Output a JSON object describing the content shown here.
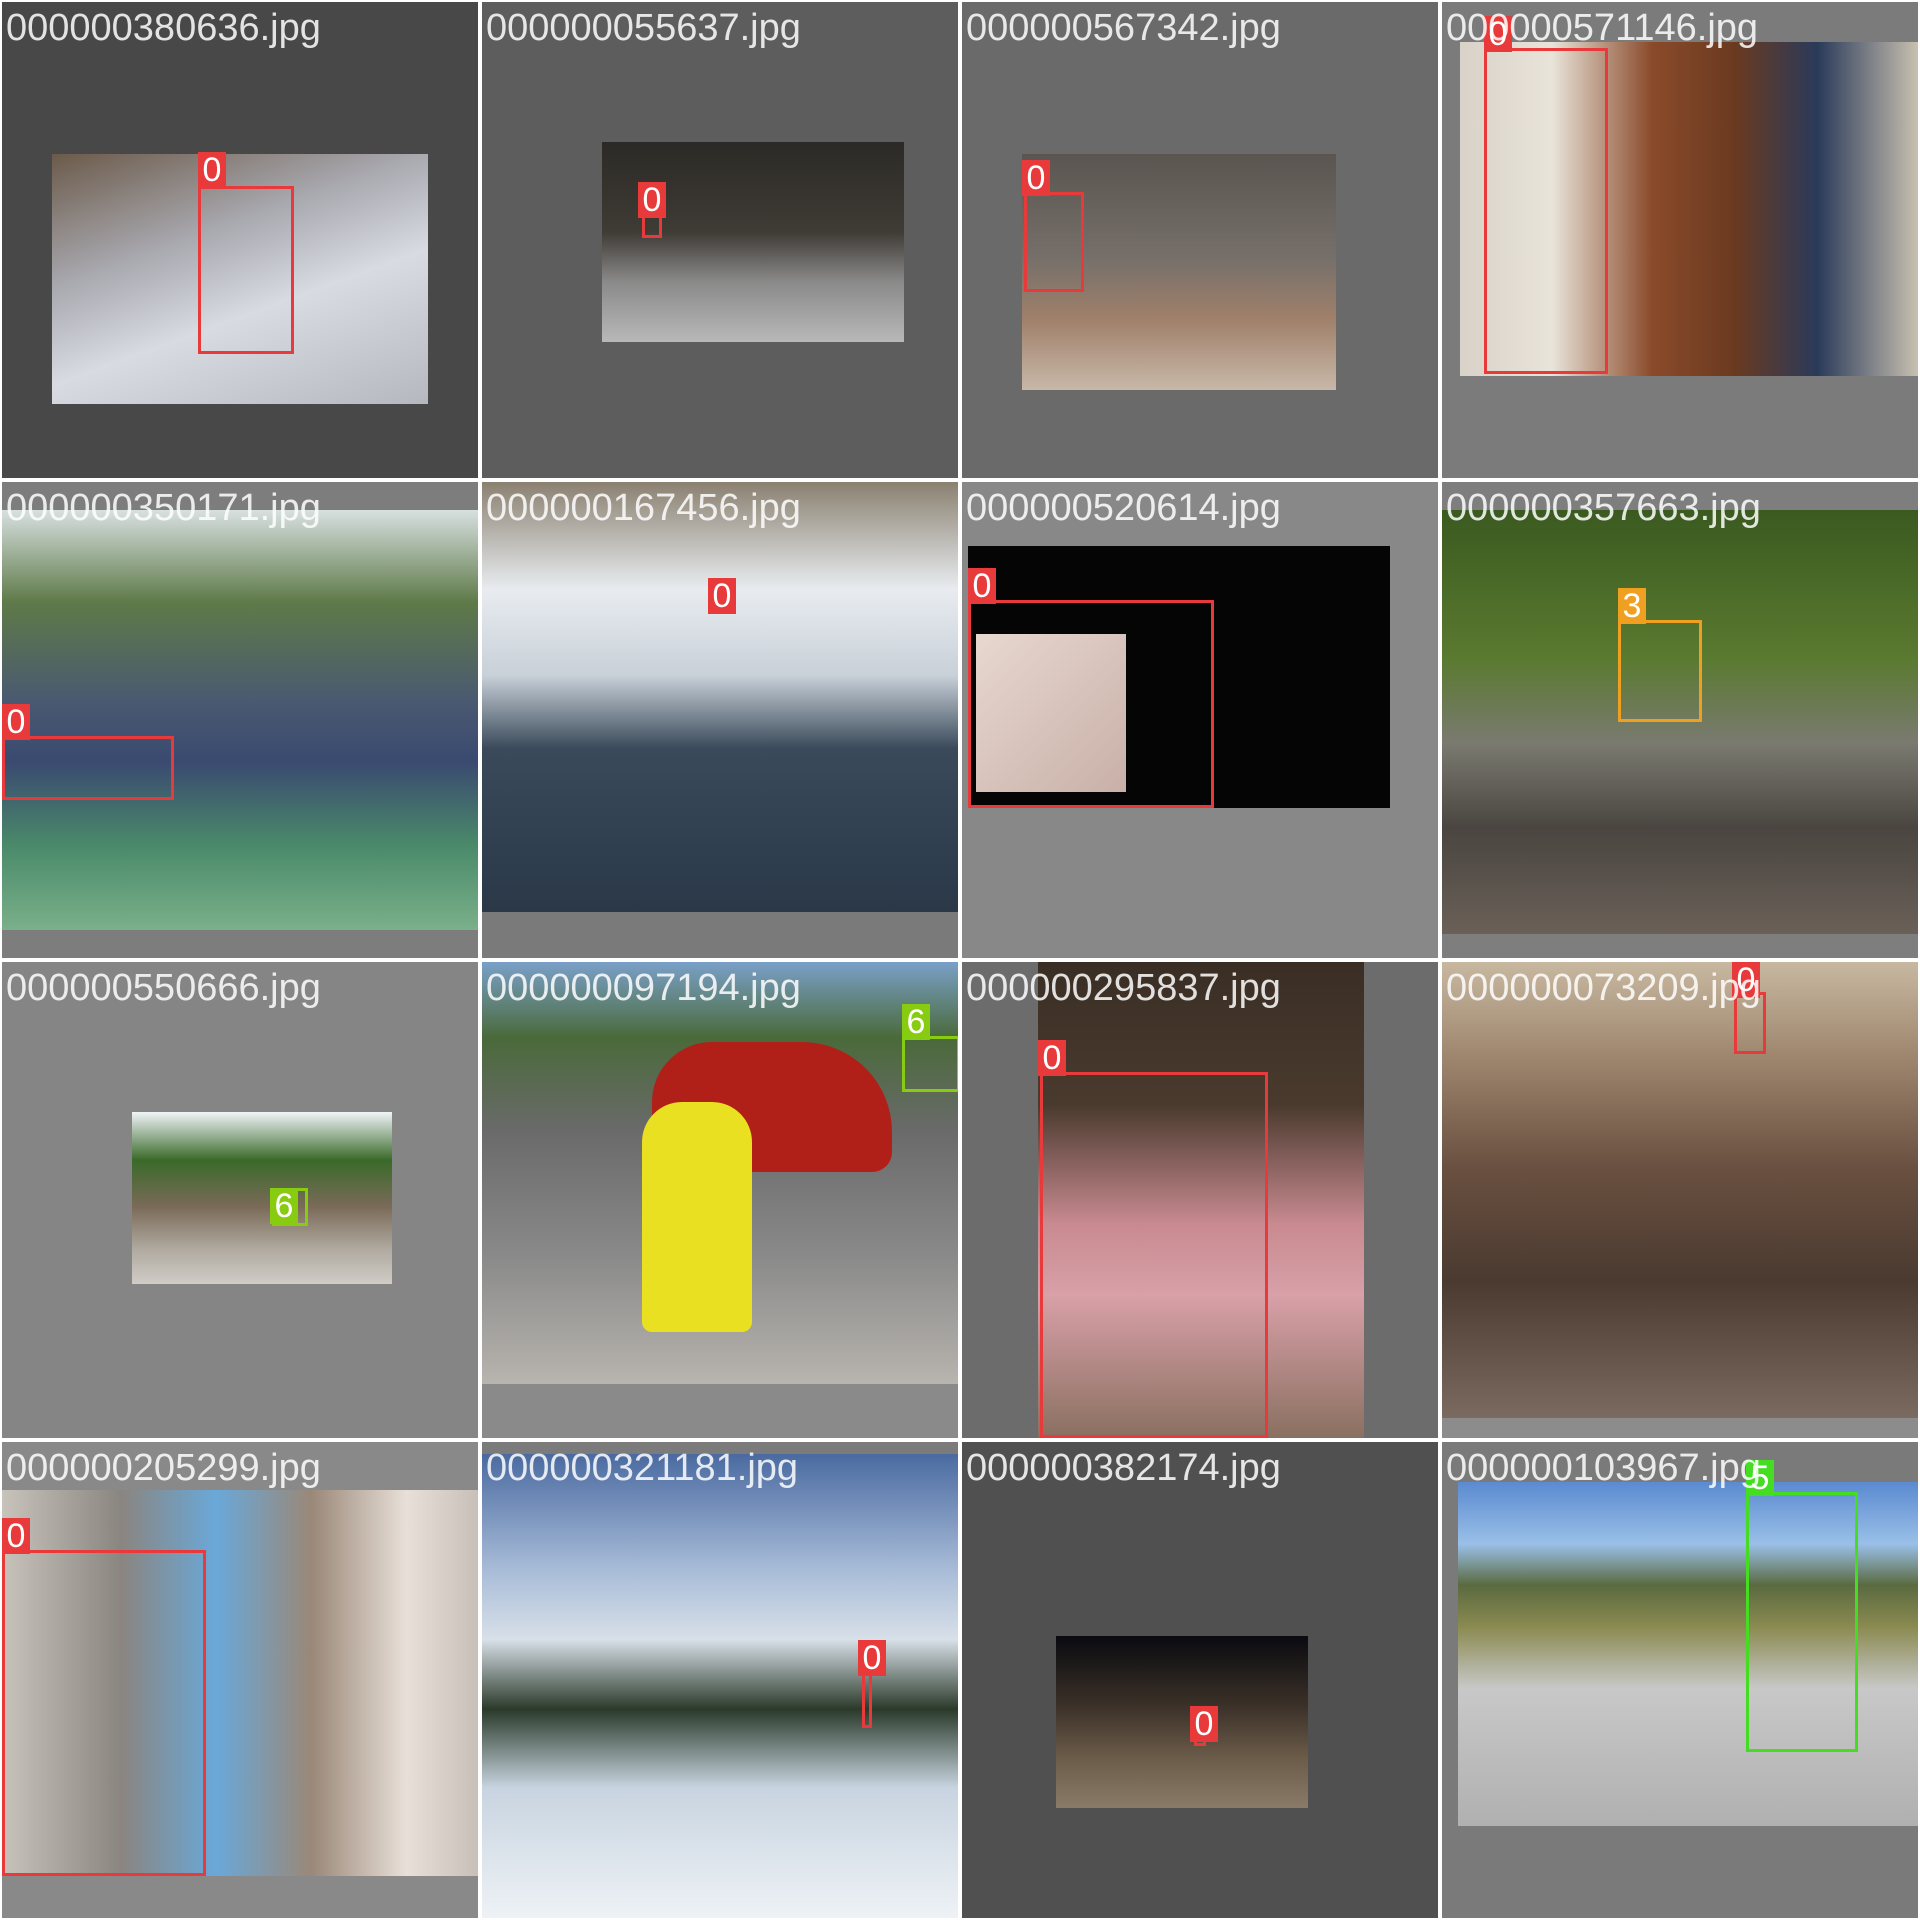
{
  "class_colors": {
    "0": "#e83a3a",
    "3": "#f0a020",
    "5": "#44dd22",
    "6": "#88cc11"
  },
  "tiles": [
    {
      "filename": "000000380636.jpg",
      "bg": "#484848",
      "boxes": [
        {
          "label": "0"
        }
      ]
    },
    {
      "filename": "000000055637.jpg",
      "bg": "#5d5d5d",
      "boxes": [
        {
          "label": "0"
        }
      ]
    },
    {
      "filename": "000000567342.jpg",
      "bg": "#6a6a6a",
      "boxes": [
        {
          "label": "0"
        }
      ]
    },
    {
      "filename": "000000571146.jpg",
      "bg": "#7b7b7b",
      "boxes": [
        {
          "label": "0"
        }
      ]
    },
    {
      "filename": "000000350171.jpg",
      "bg": "#7d7d7d",
      "boxes": [
        {
          "label": "0"
        }
      ]
    },
    {
      "filename": "000000167456.jpg",
      "bg": "#7a7a7a",
      "boxes": [
        {
          "label": "0"
        }
      ]
    },
    {
      "filename": "000000520614.jpg",
      "bg": "#888888",
      "boxes": [
        {
          "label": "0"
        }
      ]
    },
    {
      "filename": "000000357663.jpg",
      "bg": "#7e7e7e",
      "boxes": [
        {
          "label": "3"
        }
      ]
    },
    {
      "filename": "000000550666.jpg",
      "bg": "#858585",
      "boxes": [
        {
          "label": "6"
        }
      ]
    },
    {
      "filename": "000000097194.jpg",
      "bg": "#8a8a8a",
      "boxes": [
        {
          "label": "6"
        }
      ]
    },
    {
      "filename": "000000295837.jpg",
      "bg": "#6c6c6c",
      "boxes": [
        {
          "label": "0"
        }
      ]
    },
    {
      "filename": "000000073209.jpg",
      "bg": "#8c8c8c",
      "boxes": [
        {
          "label": "0"
        }
      ]
    },
    {
      "filename": "000000205299.jpg",
      "bg": "#898989",
      "boxes": [
        {
          "label": "0"
        }
      ]
    },
    {
      "filename": "000000321181.jpg",
      "bg": "#7b7b7b",
      "boxes": [
        {
          "label": "0"
        }
      ]
    },
    {
      "filename": "000000382174.jpg",
      "bg": "#505050",
      "boxes": [
        {
          "label": "0"
        }
      ]
    },
    {
      "filename": "000000103967.jpg",
      "bg": "#7a7a7a",
      "boxes": [
        {
          "label": "5"
        }
      ]
    }
  ]
}
